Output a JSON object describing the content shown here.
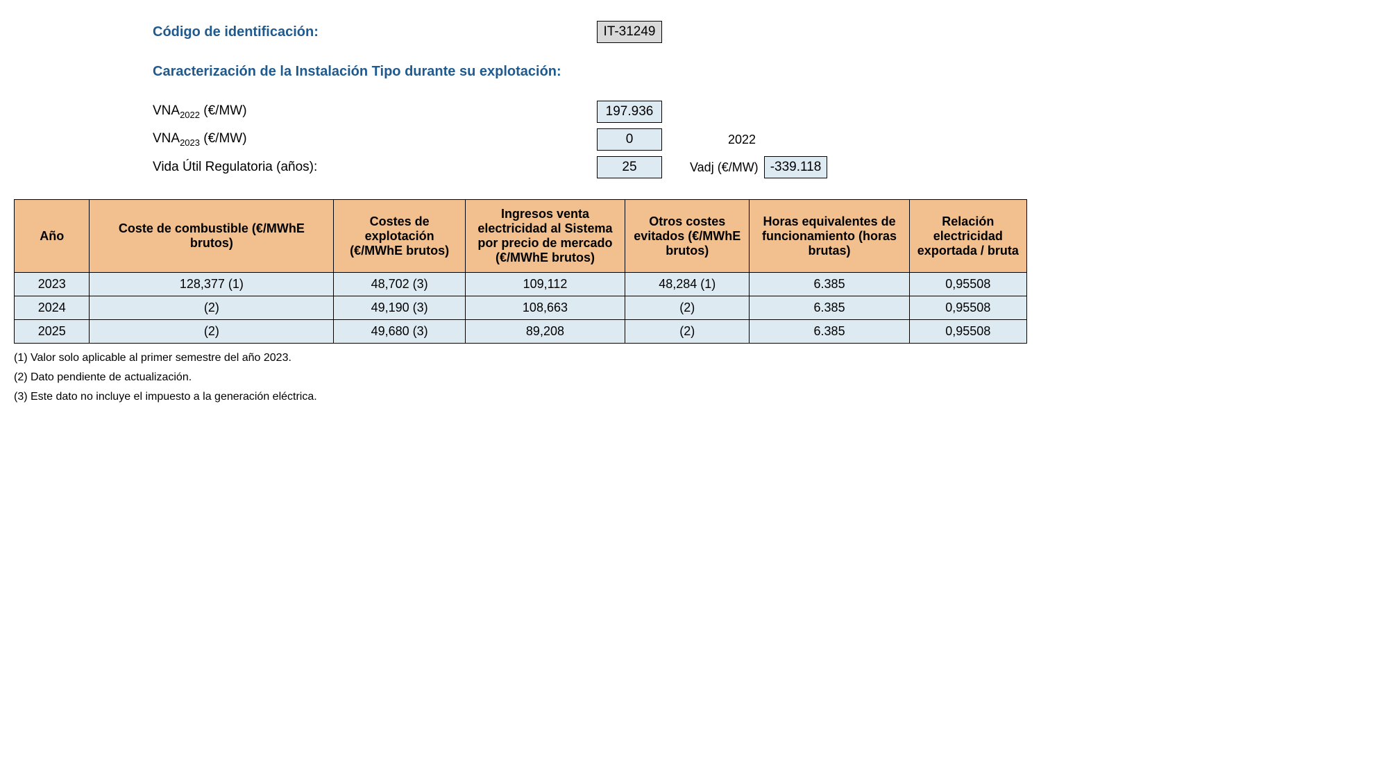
{
  "headings": {
    "id_label": "Código de identificación:",
    "section_label": "Caracterización de la Instalación Tipo durante su explotación:"
  },
  "id_code": "IT-31249",
  "params": {
    "vna2022": {
      "prefix": "VNA",
      "sub": "2022",
      "suffix": " (€/MW)",
      "value": "197.936"
    },
    "vna2023": {
      "prefix": "VNA",
      "sub": "2023",
      "suffix": " (€/MW)",
      "value": "0"
    },
    "life": {
      "label": "Vida Útil Regulatoria (años):",
      "value": "25"
    },
    "side_year": "2022",
    "vadj": {
      "label": "Vadj (€/MW)",
      "value": "-339.118"
    }
  },
  "table": {
    "columns": [
      "Año",
      "Coste de combustible (€/MWhE brutos)",
      "Costes de explotación (€/MWhE brutos)",
      "Ingresos venta electricidad al Sistema por precio de mercado (€/MWhE brutos)",
      "Otros costes evitados (€/MWhE brutos)",
      "Horas equivalentes de funcionamiento (horas brutas)",
      "Relación electricidad exportada / bruta"
    ],
    "col_classes": [
      "col-year",
      "col-fuel",
      "col-cost",
      "col-income",
      "col-other",
      "col-hours",
      "col-ratio"
    ],
    "rows": [
      [
        "2023",
        "128,377 (1)",
        "48,702 (3)",
        "109,112",
        "48,284 (1)",
        "6.385",
        "0,95508"
      ],
      [
        "2024",
        "(2)",
        "49,190 (3)",
        "108,663",
        "(2)",
        "6.385",
        "0,95508"
      ],
      [
        "2025",
        "(2)",
        "49,680 (3)",
        "89,208",
        "(2)",
        "6.385",
        "0,95508"
      ]
    ]
  },
  "footnotes": [
    "(1) Valor solo aplicable al primer semestre del año 2023.",
    "(2) Dato pendiente de actualización.",
    "(3) Este dato no incluye el impuesto a la generación eléctrica."
  ],
  "style": {
    "header_bg": "#f2bf8f",
    "cell_bg": "#ddeaf2",
    "heading_color": "#1f5a8f",
    "id_box_bg": "#d9d9d9",
    "border_color": "#000000"
  }
}
